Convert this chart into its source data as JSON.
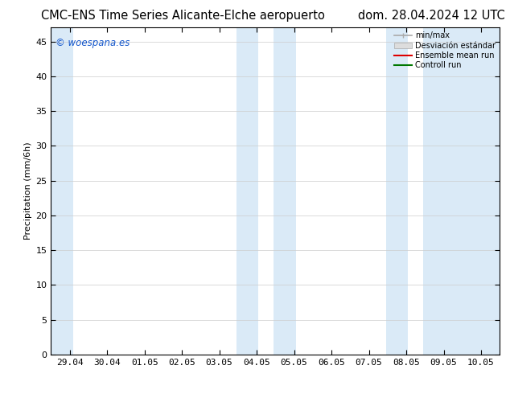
{
  "title_left": "CMC-ENS Time Series Alicante-Elche aeropuerto",
  "title_right": "dom. 28.04.2024 12 UTC",
  "ylabel": "Precipitation (mm/6h)",
  "ylim": [
    0,
    47
  ],
  "yticks": [
    0,
    5,
    10,
    15,
    20,
    25,
    30,
    35,
    40,
    45
  ],
  "xtick_labels": [
    "29.04",
    "30.04",
    "01.05",
    "02.05",
    "03.05",
    "04.05",
    "05.05",
    "06.05",
    "07.05",
    "08.05",
    "09.05",
    "10.05"
  ],
  "xtick_positions": [
    0,
    1,
    2,
    3,
    4,
    5,
    6,
    7,
    8,
    9,
    10,
    11
  ],
  "xmin": -0.5,
  "xmax": 11.5,
  "shaded_bands": [
    {
      "x_start": -0.5,
      "x_end": 0.1,
      "color": "#daeaf7"
    },
    {
      "x_start": 4.45,
      "x_end": 5.05,
      "color": "#daeaf7"
    },
    {
      "x_start": 5.45,
      "x_end": 6.05,
      "color": "#daeaf7"
    },
    {
      "x_start": 8.45,
      "x_end": 9.05,
      "color": "#daeaf7"
    },
    {
      "x_start": 9.45,
      "x_end": 11.5,
      "color": "#daeaf7"
    }
  ],
  "legend_label_minmax": "min/max",
  "legend_label_ens": "Ensemble mean run",
  "legend_label_ctrl": "Controll run",
  "legend_color_minmax": "#aaaaaa",
  "legend_color_std": "#cccccc",
  "legend_color_ens": "#dd0000",
  "legend_color_ctrl": "#007700",
  "watermark_text": "© woespana.es",
  "watermark_color": "#1155cc",
  "bg_color": "#ffffff",
  "title_fontsize": 10.5,
  "tick_fontsize": 8,
  "ylabel_fontsize": 8
}
